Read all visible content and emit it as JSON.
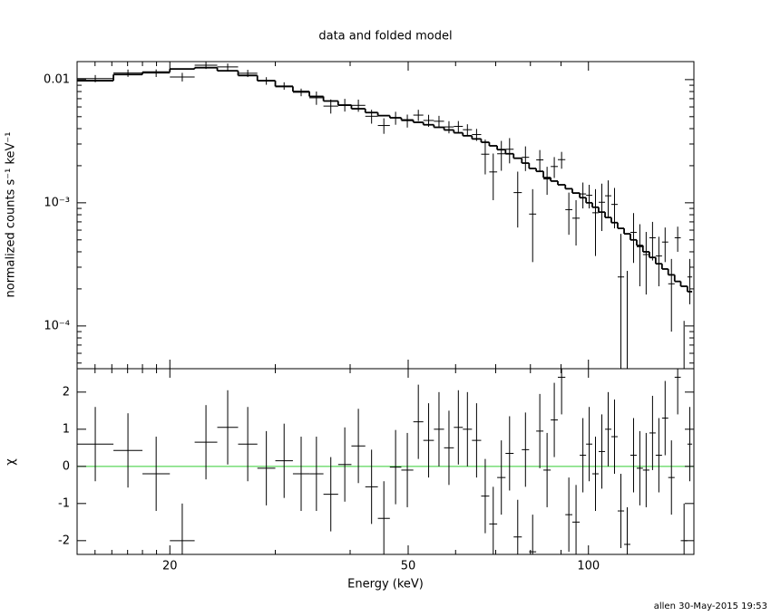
{
  "footer": "allen 30-May-2015 19:53",
  "chart_data": [
    {
      "type": "spectrum",
      "title": "data and folded model",
      "ylabel": "normalized counts s⁻¹ keV⁻¹",
      "log_y": true,
      "ylim": [
        4.5e-05,
        0.014
      ],
      "yticks": [
        {
          "value": 0.0001,
          "label": "10⁻⁴"
        },
        {
          "value": 0.001,
          "label": "10⁻³"
        },
        0.01
      ],
      "yminor": [
        5e-05,
        6e-05,
        7e-05,
        8e-05,
        9e-05,
        0.0002,
        0.0003,
        0.0004,
        0.0005,
        0.0006,
        0.0007,
        0.0008,
        0.0009,
        0.002,
        0.003,
        0.004,
        0.005,
        0.006,
        0.007,
        0.008,
        0.009
      ],
      "data_color": "#000000",
      "model_color": "#000000",
      "bin_edges": [
        14.0,
        16.1,
        18.0,
        20,
        22.0,
        24.0,
        26.0,
        28.0,
        30.0,
        32.1,
        34.2,
        36.1,
        38.2,
        40.2,
        42.4,
        44.5,
        46.6,
        48.7,
        51.0,
        53.0,
        55.2,
        57.4,
        59.6,
        61.7,
        63.9,
        66.2,
        68.3,
        70.4,
        72.7,
        75.0,
        77.4,
        79.6,
        81.8,
        84.1,
        86.5,
        88.9,
        91.5,
        94.0,
        96.7,
        99.1,
        101.5,
        104.0,
        106.6,
        109.2,
        111.9,
        114.7,
        117.5,
        120.4,
        123.3,
        126.4,
        129.5,
        132.7,
        135.9,
        139.3,
        142.6,
        146.3,
        149.0
      ],
      "values": [
        0.0102,
        0.0113,
        0.0113,
        0.0105,
        0.01307,
        0.01267,
        0.01125,
        0.00977,
        0.00889,
        0.00789,
        0.00712,
        0.0061,
        0.00624,
        0.00618,
        0.00504,
        0.00424,
        0.00489,
        0.00464,
        0.00515,
        0.00466,
        0.00459,
        0.00413,
        0.00417,
        0.00392,
        0.00358,
        0.00248,
        0.00178,
        0.0025,
        0.00272,
        0.00121,
        0.00234,
        0.00081,
        0.00223,
        0.00156,
        0.00197,
        0.00224,
        0.00088,
        0.00075,
        0.00118,
        0.00115,
        0.00083,
        0.00101,
        0.00114,
        0.00097,
        0.00025,
        2e-05,
        0.000575,
        0.00044,
        0.00038,
        0.00052,
        0.00037,
        0.00048,
        0.00022,
        0.00052,
        1e-05,
        0.00025
      ],
      "errors": [
        0.00069,
        0.00077,
        0.0008,
        0.00085,
        0.00088,
        0.00083,
        0.00076,
        0.00069,
        0.00062,
        0.00056,
        0.00088,
        0.0008,
        0.00074,
        0.0007,
        0.00065,
        0.00061,
        0.00059,
        0.00056,
        0.00054,
        0.00052,
        0.00049,
        0.00047,
        0.00044,
        0.00042,
        0.0004,
        0.00078,
        0.00073,
        0.00068,
        0.00063,
        0.00058,
        0.00053,
        0.00048,
        0.00045,
        0.0004,
        0.00038,
        0.00035,
        0.00033,
        0.0003,
        0.00028,
        0.00025,
        0.00046,
        0.00042,
        0.00038,
        0.00035,
        0.00031,
        0.00026,
        0.00025,
        0.00023,
        0.0002,
        0.00018,
        0.00016,
        0.00015,
        0.00013,
        0.00012,
        0.0001,
        0.0001
      ],
      "model": [
        0.0098,
        0.011,
        0.0115,
        0.0122,
        0.0125,
        0.0118,
        0.0108,
        0.0098,
        0.0088,
        0.008,
        0.0073,
        0.0067,
        0.0062,
        0.0058,
        0.0054,
        0.0051,
        0.0049,
        0.0047,
        0.0045,
        0.0043,
        0.0041,
        0.0039,
        0.0037,
        0.0035,
        0.0033,
        0.0031,
        0.0029,
        0.0027,
        0.0025,
        0.0023,
        0.0021,
        0.0019,
        0.0018,
        0.0016,
        0.0015,
        0.0014,
        0.0013,
        0.0012,
        0.0011,
        0.001,
        0.00092,
        0.00084,
        0.00076,
        0.00069,
        0.00062,
        0.00056,
        0.0005,
        0.00045,
        0.0004,
        0.00036,
        0.00032,
        0.00029,
        0.00026,
        0.00023,
        0.00021,
        0.00019
      ]
    },
    {
      "type": "residual",
      "ylabel": "χ",
      "xlabel": "Energy (keV)",
      "log_x": true,
      "xlim": [
        14,
        150
      ],
      "xticks": [
        20,
        50,
        100
      ],
      "xminor": [
        15,
        16,
        17,
        18,
        19,
        30,
        40,
        60,
        70,
        80,
        90
      ],
      "ylim": [
        -2.37,
        2.63
      ],
      "yticks": [
        -2,
        -1,
        0,
        1,
        2
      ],
      "zero_line_color": "#33cc33",
      "values": [
        0.6,
        0.43,
        -0.2,
        -2.0,
        0.65,
        1.05,
        0.6,
        -0.05,
        0.15,
        -0.2,
        -0.2,
        -0.75,
        0.05,
        0.55,
        -0.55,
        -1.4,
        -0.02,
        -0.1,
        1.2,
        0.7,
        1.0,
        0.5,
        1.05,
        1.0,
        0.7,
        -0.8,
        -1.55,
        -0.3,
        0.35,
        -1.9,
        0.45,
        -2.3,
        0.95,
        -0.1,
        1.25,
        2.4,
        -1.3,
        -1.5,
        0.3,
        0.6,
        -0.2,
        0.4,
        1.0,
        0.8,
        -1.2,
        -2.1,
        0.3,
        -0.05,
        -0.1,
        0.9,
        0.3,
        1.3,
        -0.3,
        2.4,
        -2.0,
        0.6
      ]
    }
  ]
}
